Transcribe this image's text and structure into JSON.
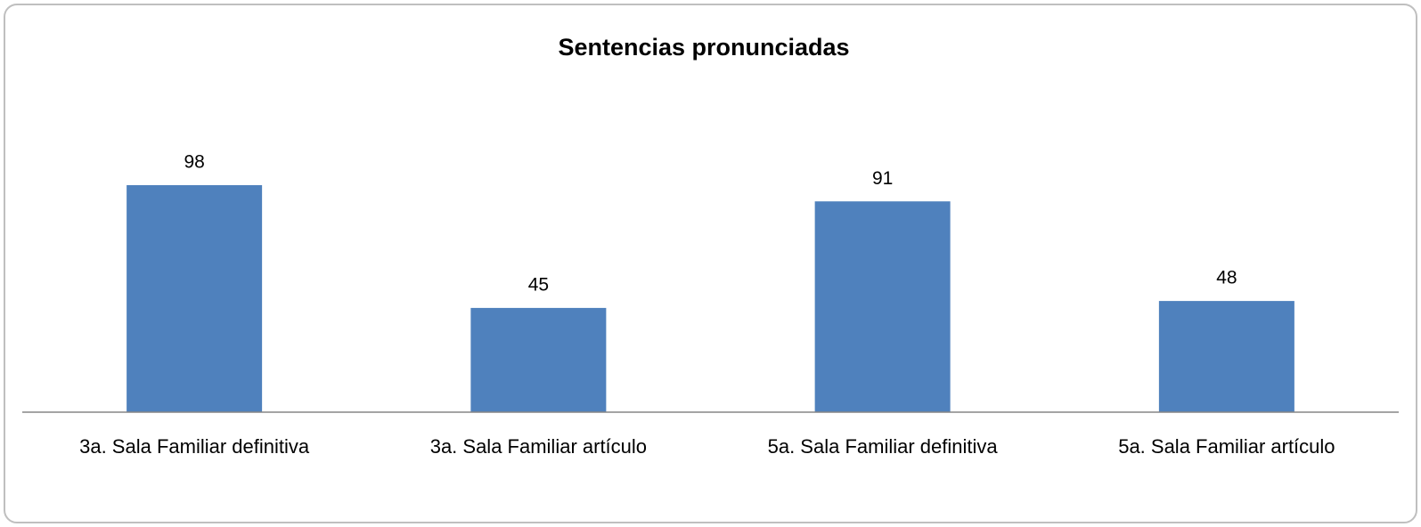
{
  "chart_data": {
    "type": "bar",
    "title": "Sentencias pronunciadas",
    "categories": [
      "3a. Sala Familiar definitiva",
      "3a. Sala Familiar artículo",
      "5a. Sala Familiar definitiva",
      "5a. Sala Familiar artículo"
    ],
    "values": [
      98,
      45,
      91,
      48
    ],
    "color": "#4f81bd",
    "grid": false
  }
}
